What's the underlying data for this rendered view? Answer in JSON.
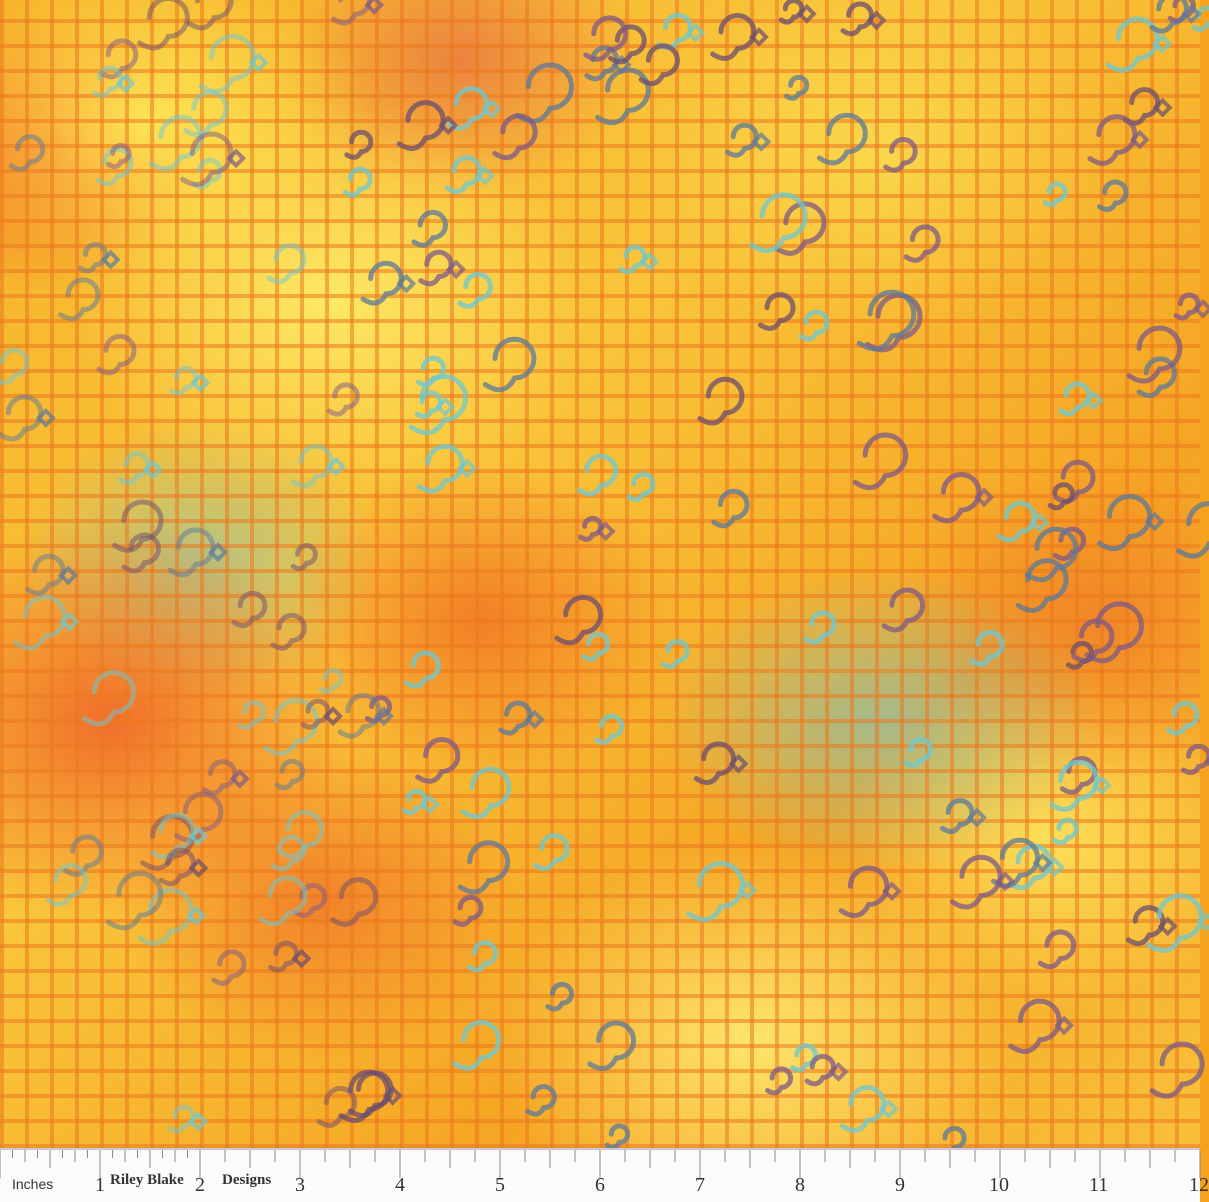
{
  "ruler": {
    "unit_label": "Inches",
    "brand_part1": "Riley Blake",
    "brand_part2": "Designs",
    "numbers": [
      "1",
      "2",
      "3",
      "4",
      "5",
      "6",
      "7",
      "8",
      "9",
      "10",
      "11",
      "12"
    ]
  },
  "colors": {
    "base": "#f7a21c",
    "yellow": "#fbd84a",
    "orange": "#ee6a22",
    "teal": "#6fc8cf",
    "purple": "#6b4d6e"
  }
}
